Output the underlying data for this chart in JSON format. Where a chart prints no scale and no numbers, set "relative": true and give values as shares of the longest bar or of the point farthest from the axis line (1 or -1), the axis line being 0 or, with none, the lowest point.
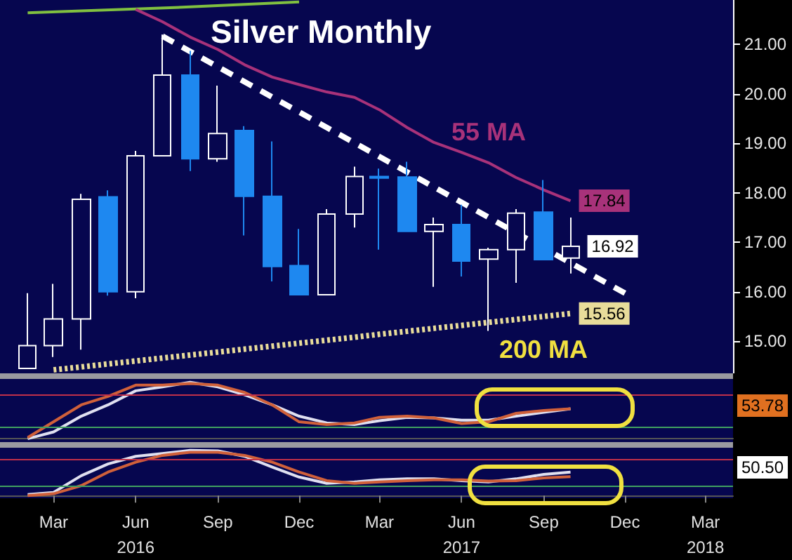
{
  "chart_data": [
    {
      "type": "candlestick",
      "title": "Silver Monthly",
      "xlim": [
        "2016-01",
        "2018-04"
      ],
      "ylim": [
        14.35,
        21.9
      ],
      "yticks": [
        {
          "value": 15,
          "label": "15.00"
        },
        {
          "value": 16,
          "label": "16.00"
        },
        {
          "value": 17,
          "label": "17.00"
        },
        {
          "value": 18,
          "label": "18.00"
        },
        {
          "value": 19,
          "label": "19.00"
        },
        {
          "value": 20,
          "label": "20.00"
        },
        {
          "value": 21,
          "label": "21.00"
        }
      ],
      "tick_labels": "y",
      "marker": "none",
      "series": [
        {
          "type": "line",
          "color": "#80c040",
          "x": [
            "2016-02",
            "2016-04",
            "2016-06",
            "2016-08",
            "2016-10",
            "2016-12"
          ],
          "values": [
            21.64,
            21.68,
            21.72,
            21.76,
            21.81,
            21.86
          ]
        },
        {
          "type": "line",
          "color": "#a8327a",
          "x": [
            "2016-06",
            "2016-07",
            "2016-08",
            "2016-09",
            "2016-10",
            "2016-11",
            "2016-12",
            "2017-01",
            "2017-02",
            "2017-03",
            "2017-04",
            "2017-05",
            "2017-06",
            "2017-07",
            "2017-08",
            "2017-09",
            "2017-10"
          ],
          "values": [
            21.71,
            21.46,
            21.15,
            20.9,
            20.59,
            20.34,
            20.19,
            20.04,
            19.93,
            19.68,
            19.32,
            19.02,
            18.82,
            18.61,
            18.31,
            18.06,
            17.84
          ],
          "value_labels": [
            null,
            null,
            null,
            null,
            null,
            null,
            null,
            null,
            null,
            null,
            null,
            null,
            null,
            null,
            null,
            null,
            "17.84"
          ]
        },
        {
          "type": "line",
          "color": "#e8dc9a",
          "line_style": "dotted",
          "x": [
            "2016-03",
            "2016-04",
            "2016-05",
            "2016-06",
            "2016-07",
            "2016-08",
            "2016-09",
            "2016-10",
            "2016-11",
            "2016-12",
            "2017-01",
            "2017-02",
            "2017-03",
            "2017-04",
            "2017-05",
            "2017-06",
            "2017-07",
            "2017-08",
            "2017-09",
            "2017-10"
          ],
          "values": [
            14.42,
            14.48,
            14.54,
            14.6,
            14.66,
            14.72,
            14.78,
            14.84,
            14.9,
            14.96,
            15.02,
            15.08,
            15.14,
            15.2,
            15.26,
            15.32,
            15.38,
            15.44,
            15.5,
            15.56
          ],
          "value_labels": [
            null,
            null,
            null,
            null,
            null,
            null,
            null,
            null,
            null,
            null,
            null,
            null,
            null,
            null,
            null,
            null,
            null,
            null,
            null,
            "15.56"
          ]
        },
        {
          "type": "line",
          "color": "#ffffff",
          "line_style": "dashed",
          "x": [
            "2016-07",
            "2017-12"
          ],
          "values": [
            21.17,
            15.97
          ]
        },
        {
          "x": [
            "2016-02",
            "2016-03",
            "2016-04",
            "2016-05",
            "2016-06",
            "2016-07",
            "2016-08",
            "2016-09",
            "2016-10",
            "2016-11",
            "2016-12",
            "2017-01",
            "2017-02",
            "2017-03",
            "2017-04",
            "2017-05",
            "2017-06",
            "2017-07",
            "2017-08",
            "2017-09",
            "2017-10"
          ],
          "ohlc": [
            [
              14.45,
              15.97,
              14.45,
              14.91
            ],
            [
              14.91,
              16.16,
              14.68,
              15.45
            ],
            [
              15.45,
              17.98,
              14.83,
              17.87
            ],
            [
              17.92,
              18.05,
              15.92,
              16.0
            ],
            [
              16.0,
              18.85,
              15.87,
              18.75
            ],
            [
              18.75,
              21.2,
              18.75,
              20.38
            ],
            [
              20.38,
              20.87,
              18.44,
              18.69
            ],
            [
              18.69,
              20.17,
              18.63,
              19.2
            ],
            [
              19.26,
              19.35,
              17.14,
              17.93
            ],
            [
              17.93,
              19.04,
              16.21,
              16.51
            ],
            [
              16.53,
              17.27,
              15.94,
              15.94
            ],
            [
              15.94,
              17.67,
              15.94,
              17.57
            ],
            [
              17.57,
              18.53,
              17.3,
              18.33
            ],
            [
              18.33,
              18.49,
              16.85,
              18.3
            ],
            [
              18.32,
              18.63,
              17.22,
              17.22
            ],
            [
              17.22,
              17.5,
              16.1,
              17.36
            ],
            [
              17.36,
              17.76,
              16.31,
              16.62
            ],
            [
              16.66,
              16.89,
              15.21,
              16.85
            ],
            [
              16.85,
              17.67,
              16.18,
              17.59
            ],
            [
              17.61,
              18.26,
              16.65,
              16.65
            ],
            [
              16.68,
              17.5,
              16.37,
              16.92
            ]
          ],
          "colors": [
            "#ffffff",
            "#ffffff",
            "#ffffff",
            "#1e88f0",
            "#ffffff",
            "#ffffff",
            "#1e88f0",
            "#ffffff",
            "#1e88f0",
            "#1e88f0",
            "#1e88f0",
            "#ffffff",
            "#ffffff",
            "#1e88f0",
            "#1e88f0",
            "#ffffff",
            "#1e88f0",
            "#ffffff",
            "#ffffff",
            "#1e88f0",
            "#ffffff"
          ],
          "value_labels": [
            null,
            null,
            null,
            null,
            null,
            null,
            null,
            null,
            null,
            null,
            null,
            null,
            null,
            null,
            null,
            null,
            null,
            null,
            null,
            null,
            "16.92"
          ]
        }
      ],
      "annotations": [
        "55 MA",
        "200 MA"
      ]
    },
    {
      "type": "line",
      "relative": true,
      "xlim": [
        "2016-01",
        "2018-04"
      ],
      "tick_labels": false,
      "marker": "none",
      "x": [
        "2016-02",
        "2016-03",
        "2016-04",
        "2016-05",
        "2016-06",
        "2016-07",
        "2016-08",
        "2016-09",
        "2016-10",
        "2016-11",
        "2016-12",
        "2017-01",
        "2017-02",
        "2017-03",
        "2017-04",
        "2017-05",
        "2017-06",
        "2017-07",
        "2017-08",
        "2017-09",
        "2017-10"
      ],
      "series": [
        {
          "color": "#e0e0f0",
          "values": [
            0,
            0.12,
            0.4,
            0.6,
            0.85,
            0.92,
            1.0,
            0.92,
            0.78,
            0.6,
            0.4,
            0.28,
            0.25,
            0.32,
            0.38,
            0.37,
            0.33,
            0.33,
            0.4,
            0.47,
            0.53
          ]
        },
        {
          "color": "#d0603a",
          "values": [
            0.02,
            0.3,
            0.6,
            0.75,
            0.95,
            0.95,
            0.98,
            0.95,
            0.82,
            0.6,
            0.3,
            0.25,
            0.28,
            0.38,
            0.4,
            0.37,
            0.27,
            0.3,
            0.45,
            0.5,
            0.53
          ]
        }
      ],
      "ref_lines": [
        {
          "axis": "y",
          "value": 0.78,
          "color": "#c0304a"
        },
        {
          "axis": "y",
          "value": 0.2,
          "color": "#40a060"
        }
      ],
      "annotations": [
        "53.78"
      ]
    },
    {
      "type": "line",
      "relative": true,
      "xlim": [
        "2016-01",
        "2018-04"
      ],
      "xticks": [
        {
          "value": "2016-03",
          "label": "Mar"
        },
        {
          "value": "2016-06",
          "label": "Jun\n2016"
        },
        {
          "value": "2016-09",
          "label": "Sep"
        },
        {
          "value": "2016-12",
          "label": "Dec"
        },
        {
          "value": "2017-03",
          "label": "Mar"
        },
        {
          "value": "2017-06",
          "label": "Jun\n2017"
        },
        {
          "value": "2017-09",
          "label": "Sep"
        },
        {
          "value": "2017-12",
          "label": "Dec"
        },
        {
          "value": "2018-03",
          "label": "Mar\n2018"
        }
      ],
      "tick_labels": "x",
      "marker": "none",
      "x": [
        "2016-02",
        "2016-03",
        "2016-04",
        "2016-05",
        "2016-06",
        "2016-07",
        "2016-08",
        "2016-09",
        "2016-10",
        "2016-11",
        "2016-12",
        "2017-01",
        "2017-02",
        "2017-03",
        "2017-04",
        "2017-05",
        "2017-06",
        "2017-07",
        "2017-08",
        "2017-09",
        "2017-10"
      ],
      "series": [
        {
          "color": "#e0e0f0",
          "values": [
            0.02,
            0.07,
            0.44,
            0.7,
            0.87,
            0.93,
            1.0,
            0.99,
            0.87,
            0.63,
            0.41,
            0.27,
            0.3,
            0.35,
            0.37,
            0.37,
            0.33,
            0.3,
            0.37,
            0.47,
            0.52
          ]
        },
        {
          "color": "#d0603a",
          "values": [
            0,
            0.04,
            0.22,
            0.52,
            0.74,
            0.89,
            0.96,
            0.96,
            0.89,
            0.74,
            0.52,
            0.33,
            0.27,
            0.3,
            0.33,
            0.35,
            0.35,
            0.32,
            0.33,
            0.39,
            0.42
          ]
        }
      ],
      "ref_lines": [
        {
          "axis": "y",
          "value": 0.8,
          "color": "#c0304a"
        },
        {
          "axis": "y",
          "value": 0.2,
          "color": "#40a060"
        }
      ],
      "annotations": [
        "50.50"
      ]
    }
  ]
}
